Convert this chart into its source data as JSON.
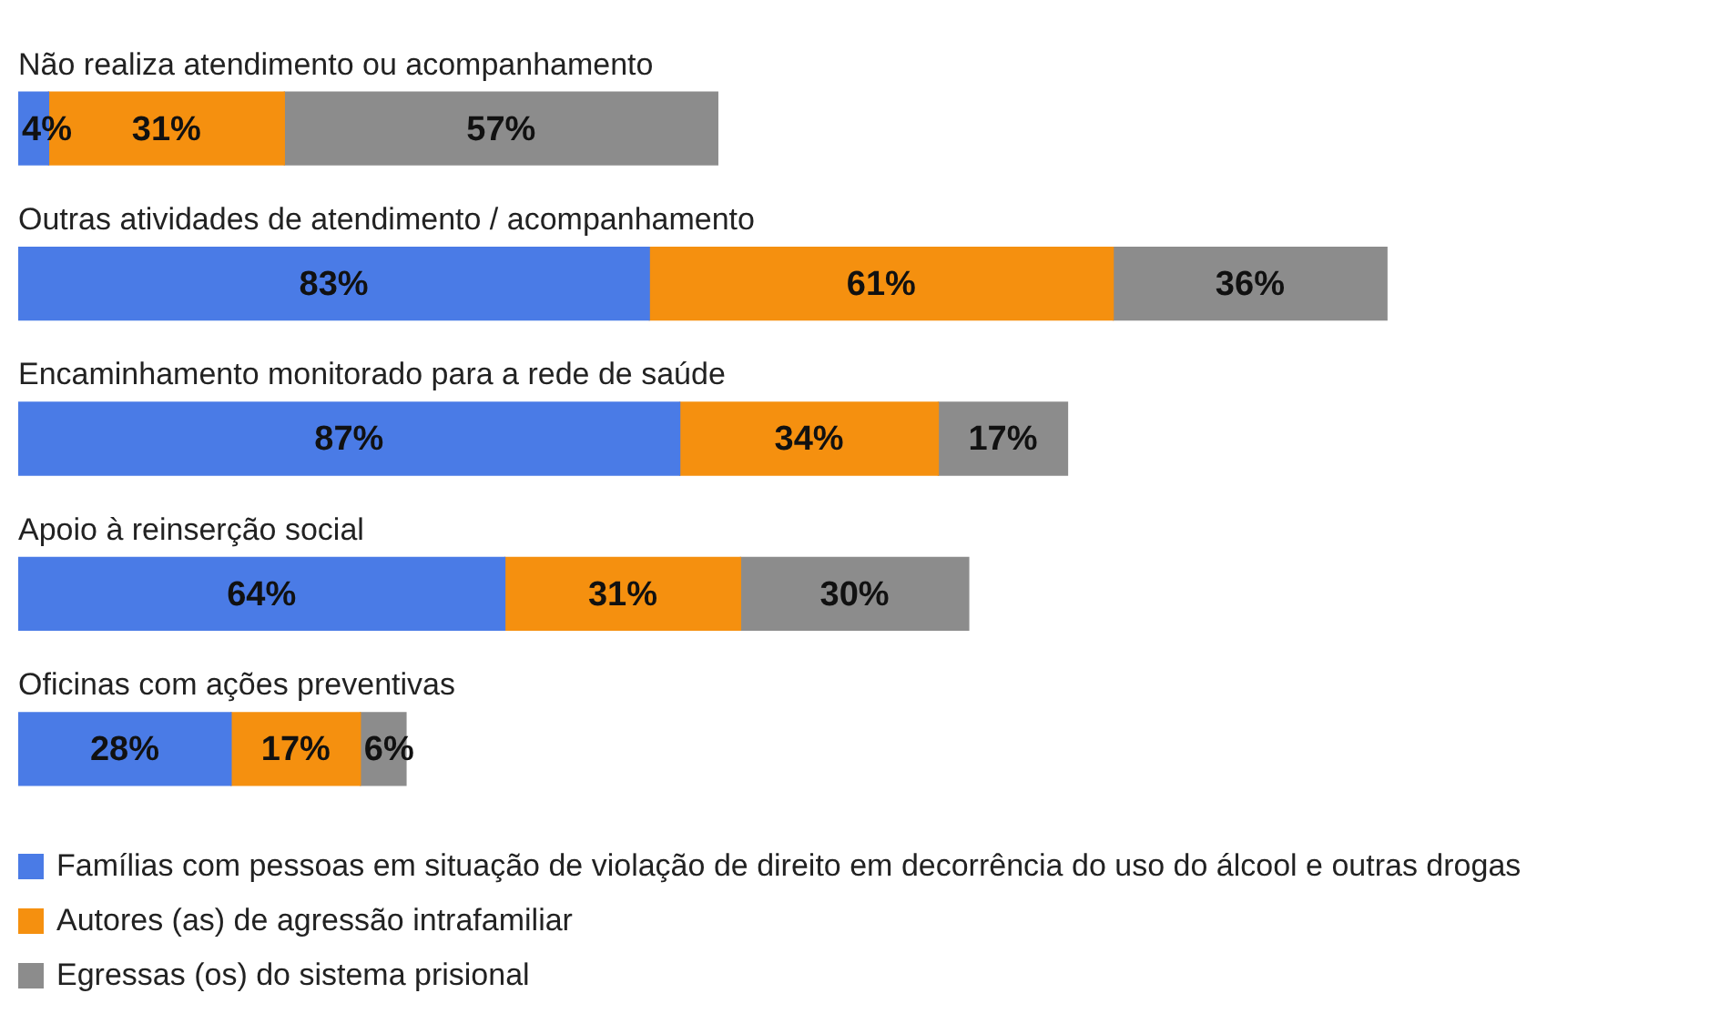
{
  "chart_data": {
    "type": "bar",
    "orientation": "horizontal",
    "stacked": true,
    "categories": [
      "Não realiza atendimento ou acompanhamento",
      "Outras atividades de atendimento / acompanhamento",
      "Encaminhamento monitorado para a rede de saúde",
      "Apoio à reinserção social",
      "Oficinas com ações preventivas"
    ],
    "series": [
      {
        "name": "Famílias com pessoas em situação de violação de direito em decorrência do uso do álcool e outras drogas",
        "color": "#4a7be6",
        "values": [
          4,
          83,
          87,
          64,
          28
        ],
        "value_labels": [
          "4%",
          "83%",
          "87%",
          "64%",
          "28%"
        ]
      },
      {
        "name": "Autores (as) de agressão intrafamiliar",
        "color": "#f5900f",
        "values": [
          31,
          61,
          34,
          31,
          17
        ],
        "value_labels": [
          "31%",
          "61%",
          "34%",
          "31%",
          "17%"
        ]
      },
      {
        "name": "Egressas (os) do sistema prisional",
        "color": "#8c8c8c",
        "values": [
          57,
          36,
          17,
          30,
          6
        ],
        "value_labels": [
          "57%",
          "36%",
          "17%",
          "30%",
          "6%"
        ]
      }
    ],
    "legend": "bottom left"
  }
}
